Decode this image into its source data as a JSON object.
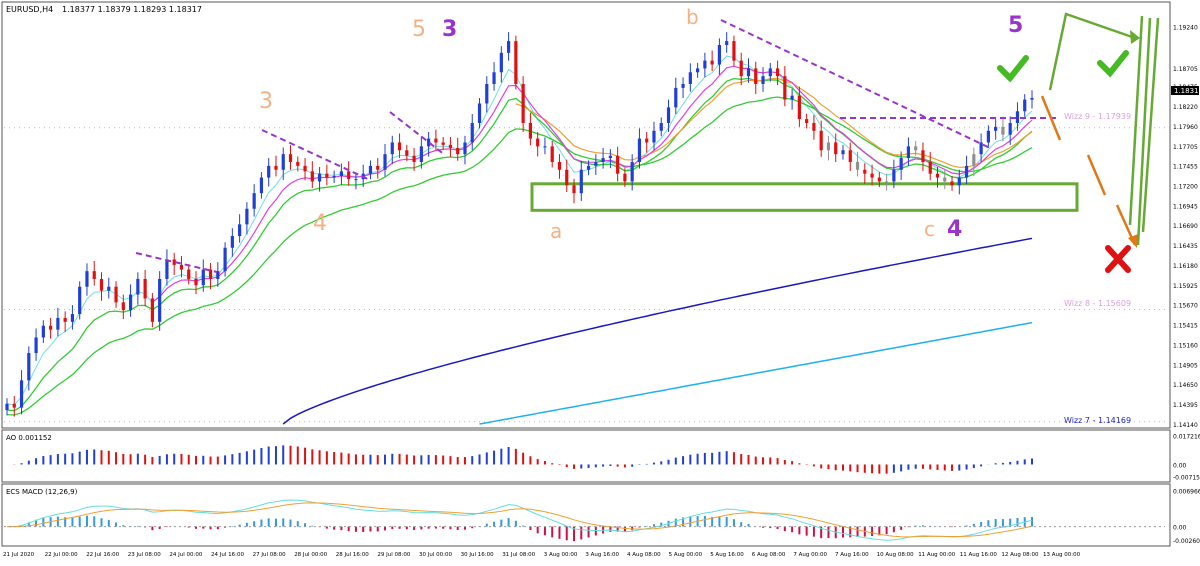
{
  "chart_data": [
    {
      "type": "candlestick",
      "symbol_label": "EURUSD,H4",
      "ohlc_label": "1.18377 1.18379 1.18293 1.18317",
      "current_price_label": "1.18317",
      "price_scale": [
        "1.19240",
        "1.18705",
        "1.18475",
        "1.18220",
        "1.17960",
        "1.17705",
        "1.17455",
        "1.17200",
        "1.16945",
        "1.16690",
        "1.16435",
        "1.16180",
        "1.15925",
        "1.15670",
        "1.15415",
        "1.15160",
        "1.14905",
        "1.14650",
        "1.14395",
        "1.14140"
      ],
      "ylim": [
        1.1414,
        1.195
      ],
      "time_labels": [
        "21 Jul 2020",
        "22 Jul 00:00",
        "22 Jul 16:00",
        "23 Jul 08:00",
        "24 Jul 00:00",
        "24 Jul 16:00",
        "27 Jul 08:00",
        "28 Jul 00:00",
        "28 Jul 16:00",
        "29 Jul 08:00",
        "30 Jul 00:00",
        "30 Jul 16:00",
        "31 Jul 08:00",
        "3 Aug 00:00",
        "3 Aug 16:00",
        "4 Aug 08:00",
        "5 Aug 00:00",
        "5 Aug 16:00",
        "6 Aug 08:00",
        "7 Aug 00:00",
        "7 Aug 16:00",
        "10 Aug 08:00",
        "11 Aug 00:00",
        "11 Aug 16:00",
        "12 Aug 08:00",
        "13 Aug 00:00"
      ],
      "wave_labels": [
        {
          "text": "3",
          "color": "#f4b183"
        },
        {
          "text": "5",
          "color": "#f4b183"
        },
        {
          "text": "3",
          "color": "#9933cc"
        },
        {
          "text": "4",
          "color": "#f4b183"
        },
        {
          "text": "b",
          "color": "#f4b183"
        },
        {
          "text": "5",
          "color": "#9933cc"
        },
        {
          "text": "a",
          "color": "#f4b183"
        },
        {
          "text": "c",
          "color": "#f4b183"
        },
        {
          "text": "4",
          "color": "#9933cc"
        }
      ],
      "levels": [
        {
          "label": "Wizz 9 - 1.17939",
          "value": 1.17939,
          "color": "#dda0dd"
        },
        {
          "label": "Wizz 8 - 1.15609",
          "value": 1.15609,
          "color": "#dda0dd"
        },
        {
          "label": "Wizz 7 - 1.14169",
          "value": 1.14169,
          "color": "#2222cc"
        }
      ],
      "support_zone": [
        1.1688,
        1.1722
      ],
      "colors": {
        "up": "#1f3fd6",
        "down": "#e01010",
        "neutral": "#909090",
        "ema_fast": "#70e0e0",
        "ema_green": "#33cc33",
        "ema_orange": "#f0a030",
        "ema_magenta": "#e040e0",
        "ma_long1": "#1818c0",
        "ma_long2": "#20b0f0",
        "box": "#66aa33"
      },
      "closes": [
        1.144,
        1.1435,
        1.147,
        1.1505,
        1.1525,
        1.154,
        1.1535,
        1.155,
        1.1545,
        1.1555,
        1.159,
        1.161,
        1.16,
        1.1585,
        1.159,
        1.157,
        1.156,
        1.158,
        1.16,
        1.1575,
        1.1545,
        1.16,
        1.1625,
        1.1618,
        1.1612,
        1.16,
        1.1592,
        1.1612,
        1.16,
        1.161,
        1.164,
        1.1655,
        1.167,
        1.169,
        1.171,
        1.173,
        1.1745,
        1.174,
        1.176,
        1.175,
        1.1745,
        1.1738,
        1.1725,
        1.1735,
        1.173,
        1.1732,
        1.1738,
        1.1728,
        1.1728,
        1.1735,
        1.1745,
        1.174,
        1.176,
        1.1775,
        1.1765,
        1.1758,
        1.175,
        1.177,
        1.178,
        1.1775,
        1.1772,
        1.1768,
        1.176,
        1.1775,
        1.18,
        1.1825,
        1.185,
        1.1865,
        1.189,
        1.1905,
        1.185,
        1.18,
        1.178,
        1.177,
        1.177,
        1.175,
        1.174,
        1.172,
        1.171,
        1.174,
        1.1745,
        1.175,
        1.1755,
        1.1758,
        1.1735,
        1.1725,
        1.175,
        1.178,
        1.1775,
        1.179,
        1.18,
        1.182,
        1.1845,
        1.185,
        1.1865,
        1.187,
        1.188,
        1.1875,
        1.19,
        1.1905,
        1.188,
        1.186,
        1.187,
        1.185,
        1.186,
        1.187,
        1.186,
        1.183,
        1.1835,
        1.1805,
        1.18,
        1.179,
        1.1765,
        1.1775,
        1.176,
        1.1765,
        1.175,
        1.174,
        1.1735,
        1.173,
        1.1725,
        1.1725,
        1.174,
        1.1755,
        1.177,
        1.1765,
        1.175,
        1.1735,
        1.173,
        1.1725,
        1.172,
        1.173,
        1.1745,
        1.176,
        1.1775,
        1.179,
        1.1795,
        1.1785,
        1.18,
        1.1815,
        1.183,
        1.1832
      ],
      "oscillators": [
        {
          "name": "AO",
          "label": "AO 0.001152",
          "scale": [
            "0.017216",
            "0.00",
            "-0.007157"
          ],
          "ylim": [
            -0.008,
            0.018
          ]
        },
        {
          "name": "ECS MACD",
          "label": "ECS MACD (12,26,9)",
          "scale": [
            "0.0069664",
            "0.00",
            "-0.002609"
          ],
          "ylim": [
            -0.003,
            0.0075
          ]
        }
      ]
    }
  ]
}
